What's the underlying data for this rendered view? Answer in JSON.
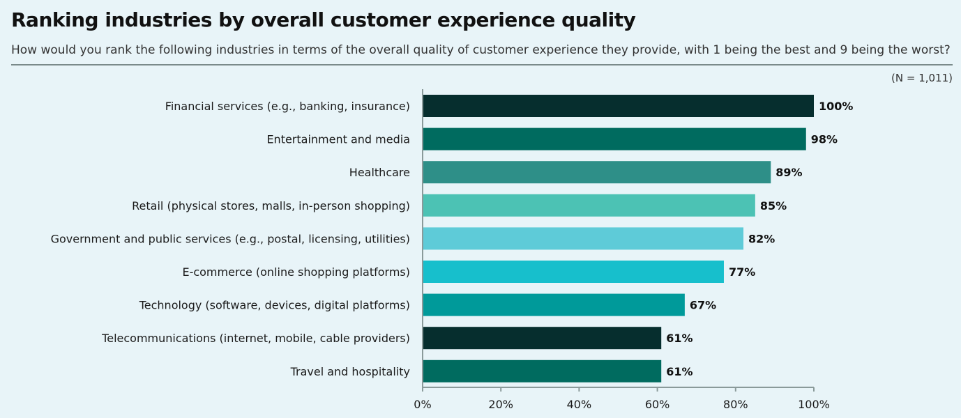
{
  "title": "Ranking industries by overall customer experience quality",
  "subtitle": "How would you rank the following industries in terms of the overall quality of customer experience they provide, with 1 being the best and 9 being the worst?",
  "sample_note": "(N = 1,011)",
  "chart_data": {
    "type": "bar",
    "orientation": "horizontal",
    "categories": [
      "Financial services (e.g., banking, insurance)",
      "Entertainment and media",
      "Healthcare",
      "Retail (physical stores, malls, in-person shopping)",
      "Government and public services (e.g., postal, licensing, utilities)",
      "E-commerce (online shopping platforms)",
      "Technology (software, devices, digital platforms)",
      "Telecommunications (internet, mobile, cable providers)",
      "Travel and hospitality"
    ],
    "values": [
      100,
      98,
      89,
      85,
      82,
      77,
      67,
      61,
      61
    ],
    "value_labels": [
      "100%",
      "98%",
      "89%",
      "85%",
      "82%",
      "77%",
      "67%",
      "61%",
      "61%"
    ],
    "colors": [
      "#062e2e",
      "#006b5f",
      "#2e8f88",
      "#4cc2b4",
      "#5ecbd8",
      "#17bfcc",
      "#009a9a",
      "#062e2e",
      "#006b5f"
    ],
    "xlim": [
      0,
      100
    ],
    "xticks": [
      "0%",
      "20%",
      "40%",
      "60%",
      "80%",
      "100%"
    ],
    "grid": false
  }
}
